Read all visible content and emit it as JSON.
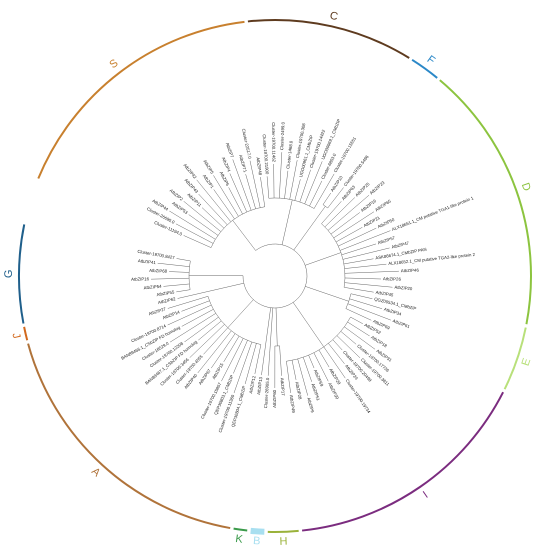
{
  "clades": [
    {
      "name": "S",
      "color": "#c8802e",
      "leaves": [
        "Cluster-11194.0",
        "Cluster-26690.0",
        "AtbZIP44",
        "AtbZIP53",
        "AtbZIP2",
        "AtbZIP11",
        "AtbZIP43",
        "AtbZIP42",
        "AtbZIP1",
        "AtbZIP5",
        "AtbZIP6",
        "AtbZIP4",
        "AtbZIP7",
        "AtbZIP71",
        "Cluster-22517.0",
        "AtbZIP48"
      ]
    },
    {
      "name": "C",
      "color": "#5e3b1f",
      "leaves": [
        "Cluster-19700.21900",
        "Cluster-19700.11462",
        "Cluster-2499.0",
        "Cluster-1468.0",
        "Cluster-19700.308",
        "UGO00961.1_CMbZIP",
        "Cluster-19700.14422",
        "UGO00969.1_CMbZIP",
        "Cluster-6853.0",
        "Cluster-19700.15551"
      ]
    },
    {
      "name": "F",
      "color": "#2b88c8",
      "leaves": [
        "AtbZIP10",
        "Cluster-19700.5496"
      ]
    },
    {
      "name": "D",
      "color": "#8cc43f",
      "leaves": [
        "AtbZIP63",
        "AtbZIP25",
        "AtbZIP23",
        "AtbZIP19",
        "AtbZIP65",
        "AtbZIP21",
        "AtbZIP50",
        "ALX18651.1_CM putative TGA1-like protein 1",
        "AtbZIP57",
        "AtbZIP47",
        "ASK86674.1_CMbZIP PAN",
        "ALX18652.1_CM putative TGA2-like protein 2",
        "AtbZIP46",
        "AtbZIP26",
        "AtbZIP20",
        "AtbZIP45"
      ]
    },
    {
      "name": "E",
      "color": "#b8e07a",
      "leaves": [
        "QGZ00534.1_CMbZIP",
        "AtbZIP34",
        "AtbZIP61",
        "AtbZIP69"
      ]
    },
    {
      "name": "I",
      "color": "#7b2c7f",
      "leaves": [
        "AtbZIP52",
        "AtbZIP18",
        "AtbZIP31",
        "Cluster-19700.17736",
        "Cluster-19700.3811",
        "Cluster-19700.20499",
        "AtbZIP24",
        "Cluster-19700.19734",
        "AtbZIP29",
        "AtbZIP30",
        "AtbZIP59",
        "AtbZIP51",
        "AtbZIP9",
        "AtbZIP28",
        "AtbZIP49"
      ]
    },
    {
      "name": "H",
      "color": "#9ab23a",
      "leaves": [
        "AtbZIP17",
        "AtbZIP60"
      ]
    },
    {
      "name": "B",
      "color": "#a8dff0",
      "leaves": [
        "Cluster-26905.0"
      ]
    },
    {
      "name": "K",
      "color": "#3a9a4a",
      "leaves": [
        "AtbZIP13"
      ]
    },
    {
      "name": "A",
      "color": "#b0733a",
      "leaves": [
        "AtbZIP12",
        "QEP30804.1_CMbZIP",
        "Cluster-19700.11360",
        "QEP30803.1_CMbZIP",
        "Cluster-19700.15857",
        "AtbZIP15",
        "AtbZIP67",
        "AtbZIP40",
        "Cluster-19700.4555",
        "Cluster-19700.3456",
        "BAN89467.1_CSbZIP FD homolog",
        "Cluster-19700.12208",
        "Cluster-18529.0",
        "BAN89466.1_CSbZIP FD homolog",
        "Cluster-19700.8714",
        "AtbZIP14",
        "AtbZIP27"
      ]
    },
    {
      "name": "J",
      "color": "#d2691e",
      "leaves": [
        "AtbZIP62"
      ]
    },
    {
      "name": "G",
      "color": "#1f5f8b",
      "leaves": [
        "AtbZIP55",
        "AtbZIP54",
        "AtbZIP16",
        "AtbZIP68",
        "AtbZIP41",
        "Cluster-19700.8427"
      ]
    }
  ]
}
